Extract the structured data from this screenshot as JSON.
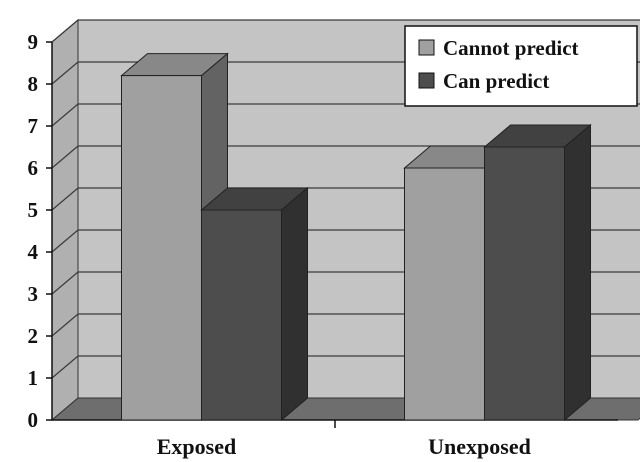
{
  "chart_data": {
    "type": "bar",
    "three_d": true,
    "categories": [
      "Exposed",
      "Unexposed"
    ],
    "series": [
      {
        "name": "Cannot predict",
        "values": [
          8.2,
          6.0
        ],
        "color": "#a0a0a0"
      },
      {
        "name": "Can predict",
        "values": [
          5.0,
          6.5
        ],
        "color": "#4d4d4d"
      }
    ],
    "title": "",
    "xlabel": "",
    "ylabel": "",
    "ylim": [
      0,
      9
    ],
    "yticks": [
      "0",
      "1",
      "2",
      "3",
      "4",
      "5",
      "6",
      "7",
      "8",
      "9"
    ],
    "grid": true,
    "legend": "top-right",
    "colors": {
      "wall": "#c4c4c4",
      "floor": "#6e6e6e",
      "grid": "#3a3a3a"
    }
  }
}
